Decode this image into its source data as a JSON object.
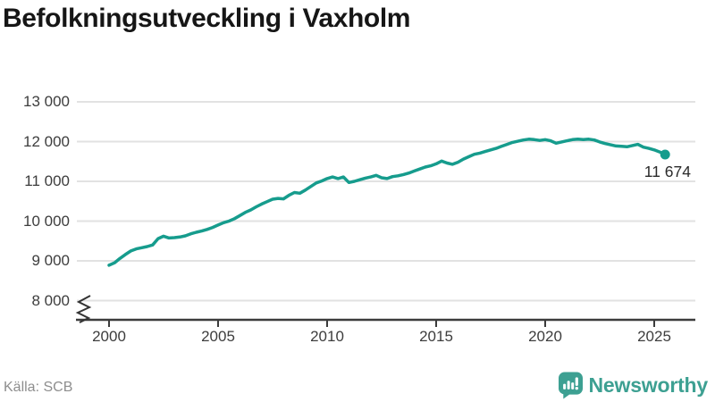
{
  "header": {
    "title": "Befolkningsutveckling i Vaxholm"
  },
  "footer": {
    "source": "Källa: SCB",
    "brand": "Newsworthy"
  },
  "chart_data": {
    "type": "line",
    "title": "Befolkningsutveckling i Vaxholm",
    "xlabel": "",
    "ylabel": "",
    "x_start": 2000,
    "x_step": 0.25,
    "xlim": [
      1998.5,
      2026.9
    ],
    "ylim": [
      8000,
      13000
    ],
    "axis_break_at_bottom": true,
    "grid": "horizontal",
    "ytick_values": [
      13000,
      12000,
      11000,
      10000,
      9000,
      8000
    ],
    "ytick_labels": [
      "13 000",
      "12 000",
      "11 000",
      "10 000",
      "9 000",
      "8 000"
    ],
    "xtick_values": [
      2000,
      2005,
      2010,
      2015,
      2020,
      2025
    ],
    "xtick_labels": [
      "2000",
      "2005",
      "2010",
      "2015",
      "2020",
      "2025"
    ],
    "end_label": "11 674",
    "end_value": 11674,
    "line_color": "#169c8d",
    "grid_color": "#e2e2e2",
    "axis_color": "#3c3c3c",
    "series": [
      {
        "values": [
          8890,
          8950,
          9060,
          9160,
          9250,
          9300,
          9330,
          9360,
          9400,
          9560,
          9620,
          9575,
          9585,
          9600,
          9630,
          9680,
          9720,
          9750,
          9790,
          9840,
          9900,
          9960,
          10000,
          10060,
          10140,
          10220,
          10280,
          10360,
          10430,
          10490,
          10550,
          10570,
          10560,
          10650,
          10720,
          10700,
          10780,
          10870,
          10960,
          11010,
          11070,
          11110,
          11070,
          11110,
          10970,
          11000,
          11040,
          11080,
          11110,
          11150,
          11090,
          11070,
          11120,
          11140,
          11170,
          11210,
          11260,
          11310,
          11360,
          11390,
          11440,
          11510,
          11460,
          11430,
          11480,
          11560,
          11620,
          11680,
          11710,
          11750,
          11790,
          11830,
          11880,
          11930,
          11980,
          12010,
          12040,
          12060,
          12050,
          12030,
          12050,
          12020,
          11960,
          11990,
          12020,
          12050,
          12060,
          12050,
          12060,
          12040,
          11990,
          11950,
          11920,
          11890,
          11880,
          11870,
          11900,
          11930,
          11860,
          11830,
          11790,
          11740,
          11674
        ]
      }
    ]
  }
}
